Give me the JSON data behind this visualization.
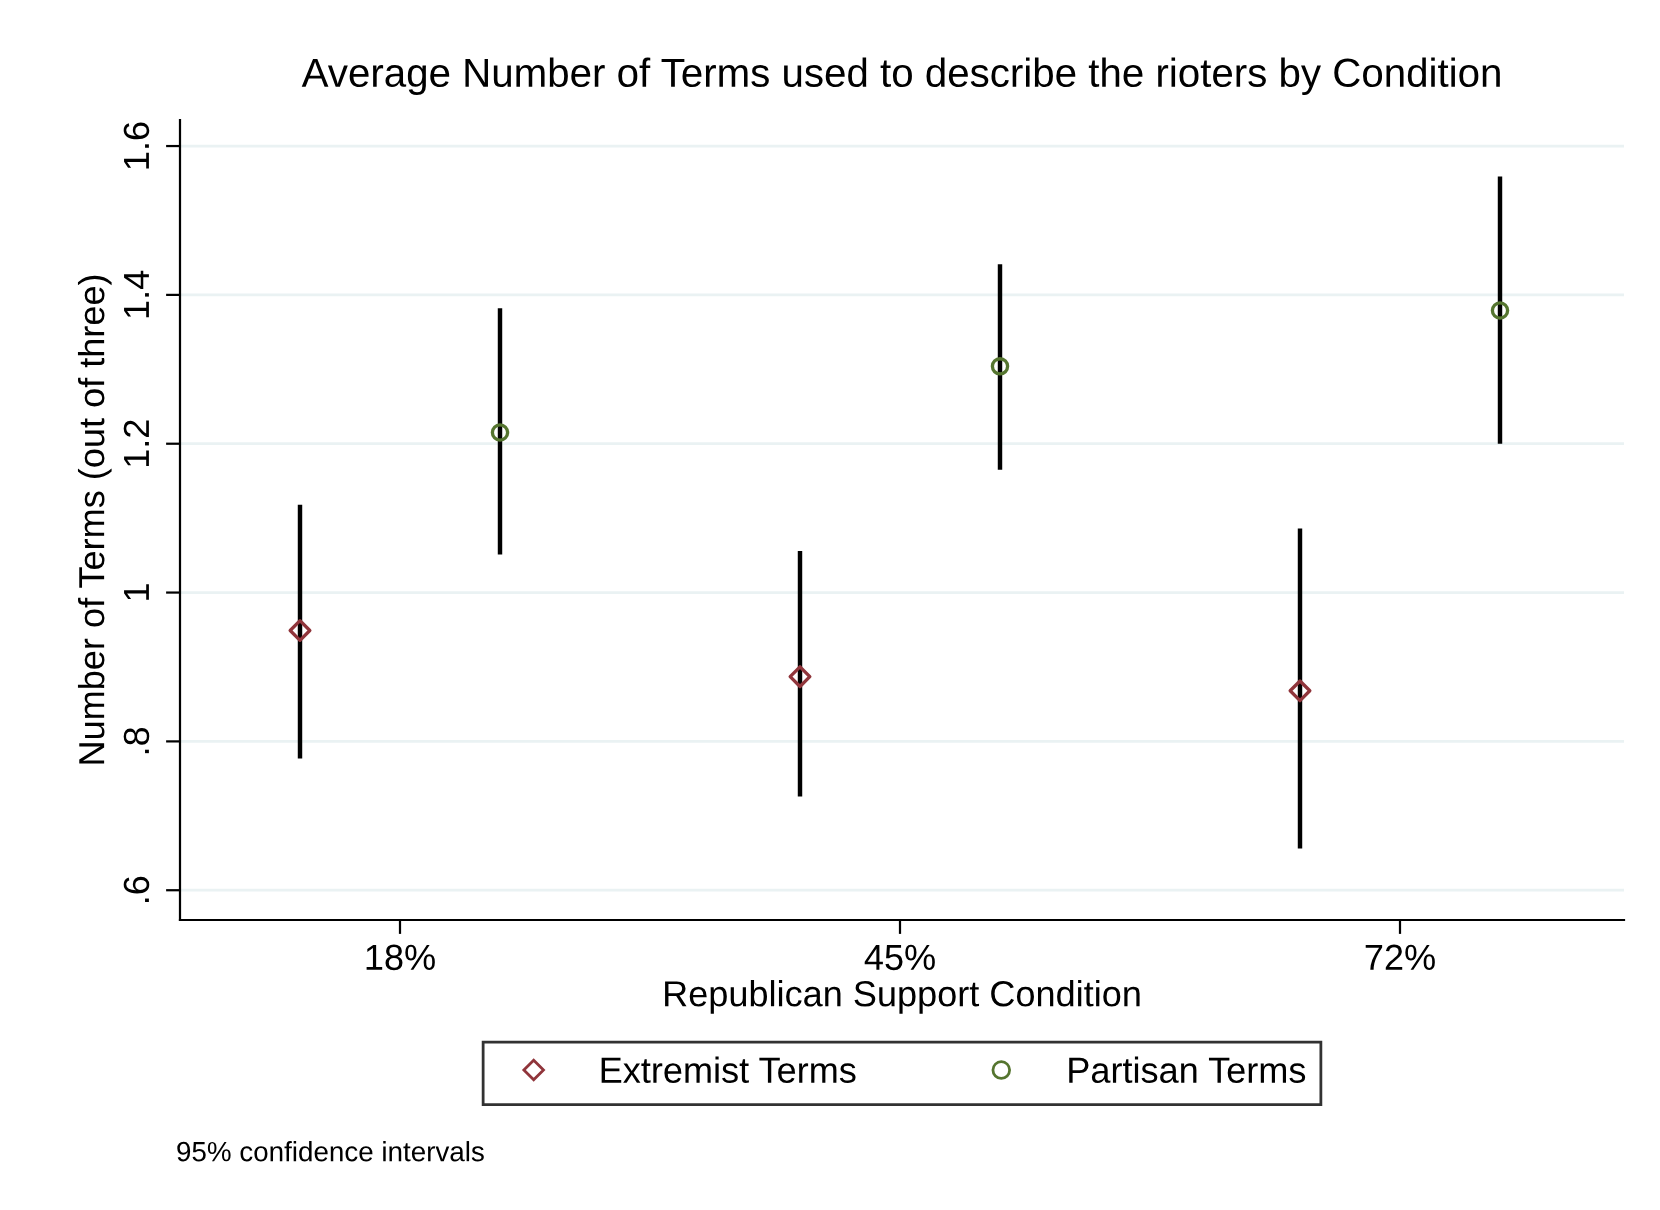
{
  "chart_data": {
    "type": "scatter",
    "title": "Average Number of Terms used to describe the rioters by Condition",
    "xlabel": "Republican Support Condition",
    "ylabel": "Number of Terms (out of three)",
    "categories": [
      "18%",
      "45%",
      "72%"
    ],
    "series": [
      {
        "name": "Extremist Terms",
        "color": "#90353b",
        "marker": "diamond",
        "values": [
          0.949,
          0.887,
          0.868
        ],
        "errors": [
          [
            0.777,
            1.118
          ],
          [
            0.726,
            1.056
          ],
          [
            0.656,
            1.086
          ]
        ]
      },
      {
        "name": "Partisan Terms",
        "color": "#55752f",
        "marker": "circle",
        "values": [
          1.215,
          1.304,
          1.379
        ],
        "errors": [
          [
            1.051,
            1.382
          ],
          [
            1.165,
            1.441
          ],
          [
            1.2,
            1.559
          ]
        ]
      }
    ],
    "ylim": [
      0.56,
      1.635
    ],
    "yticks": [
      {
        "value": 0.6,
        "label": ".6"
      },
      {
        "value": 0.8,
        "label": ".8"
      },
      1,
      1.2,
      1.4,
      1.6
    ],
    "grid": "y",
    "legend": "bottom",
    "annotations": [
      "95% confidence intervals"
    ]
  }
}
